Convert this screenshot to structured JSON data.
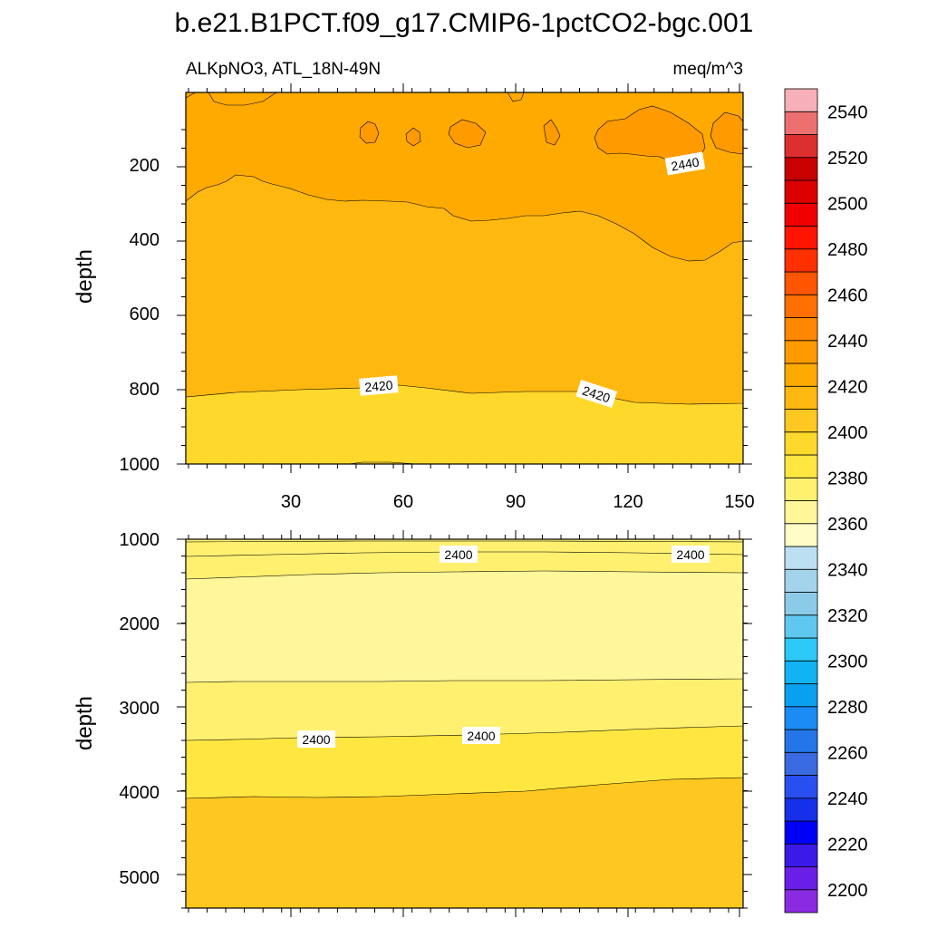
{
  "title": "b.e21.B1PCT.f09_g17.CMIP6-1pctCO2-bgc.001",
  "colors": {
    "background": "#ffffff",
    "line": "#000000",
    "palette": [
      "#8a2be2",
      "#6a1fe6",
      "#3b1ae8",
      "#0000f5",
      "#1530e8",
      "#2a4ff0",
      "#3a6ae0",
      "#2476e8",
      "#1c8cf4",
      "#0aa0f0",
      "#10b4f2",
      "#2cc8f8",
      "#60c8f0",
      "#8ccbe8",
      "#a4d4ec",
      "#bce0f2",
      "#fffcc8",
      "#fff79a",
      "#fff070",
      "#ffe640",
      "#ffd82c",
      "#ffc820",
      "#ffb810",
      "#ffaa00",
      "#ff9a00",
      "#ff8800",
      "#ff7000",
      "#ff5400",
      "#ff3000",
      "#ff1400",
      "#f00000",
      "#dc0000",
      "#c80000",
      "#dc3030",
      "#ec7070",
      "#f8b0b8"
    ]
  },
  "colorbar": {
    "min": 2190,
    "max": 2550,
    "step": 10,
    "labels": [
      "2200",
      "2220",
      "2240",
      "2260",
      "2280",
      "2300",
      "2320",
      "2340",
      "2360",
      "2380",
      "2400",
      "2420",
      "2440",
      "2460",
      "2480",
      "2500",
      "2520",
      "2540"
    ]
  },
  "chart_data": [
    {
      "type": "contour",
      "left_title": "ALKpNO3, ATL_18N-49N",
      "right_title": "meq/m^3",
      "ylabel": "depth",
      "xlabel": "",
      "xlim": [
        1,
        151
      ],
      "ylim": [
        0,
        1000
      ],
      "y_reversed": true,
      "x_ticks": [
        "30",
        "60",
        "90",
        "120",
        "150"
      ],
      "y_ticks": [
        "200",
        "400",
        "600",
        "800",
        "1000"
      ],
      "fill_levels": [
        {
          "level": 2410,
          "description": "bottom band below 2420 isoline"
        },
        {
          "level": 2420,
          "description": "mid-depth band 250-800 m"
        },
        {
          "level": 2430,
          "description": "upper band above ~250 m"
        },
        {
          "level": 2440,
          "description": "patches near 120-150 longitude"
        }
      ],
      "contour_labels": [
        "2440",
        "2420",
        "2420"
      ]
    },
    {
      "type": "contour",
      "ylabel": "depth",
      "xlabel": "",
      "xlim": [
        1,
        151
      ],
      "ylim": [
        1000,
        5400
      ],
      "y_reversed": true,
      "x_ticks": [
        "",
        "",
        "",
        "",
        ""
      ],
      "y_ticks": [
        "1000",
        "2000",
        "3000",
        "4000",
        "5000"
      ],
      "fill_levels": [
        {
          "level": 2410,
          "description": "deep band below ~4000 m"
        },
        {
          "level": 2400,
          "description": "band ~3300-4000 m"
        },
        {
          "level": 2390,
          "description": "band ~2700-3300 m"
        },
        {
          "level": 2380,
          "description": "band ~1500-2700 m"
        }
      ],
      "contour_labels": [
        "2400",
        "2400",
        "2400",
        "2400"
      ]
    }
  ]
}
